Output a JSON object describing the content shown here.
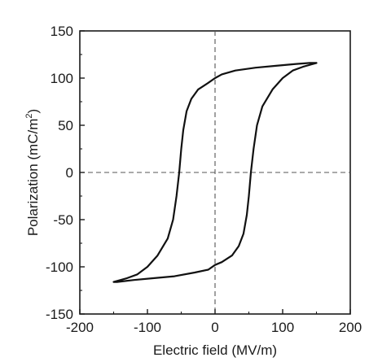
{
  "chart_data": {
    "type": "line",
    "xlabel": "Electric field (MV/m)",
    "ylabel_main": "Polarization (mC/m",
    "ylabel_sup": "2",
    "ylabel_end": ")",
    "xlim": [
      -200,
      200
    ],
    "ylim": [
      -150,
      150
    ],
    "x_ticks": [
      "-200",
      "-100",
      "0",
      "100",
      "200"
    ],
    "y_ticks": [
      "150",
      "100",
      "50",
      "0",
      "-50",
      "-100",
      "-150"
    ],
    "reference_lines": [
      "x=0 dashed",
      "y=0 dashed"
    ],
    "series": [
      {
        "color": "#111111",
        "points": [
          [
            150,
            116
          ],
          [
            140,
            116
          ],
          [
            120,
            115
          ],
          [
            90,
            113
          ],
          [
            60,
            111
          ],
          [
            30,
            108
          ],
          [
            10,
            104
          ],
          [
            0,
            100
          ],
          [
            -10,
            95
          ],
          [
            -25,
            88
          ],
          [
            -35,
            78
          ],
          [
            -42,
            65
          ],
          [
            -47,
            45
          ],
          [
            -50,
            25
          ],
          [
            -53,
            0
          ],
          [
            -57,
            -25
          ],
          [
            -62,
            -50
          ],
          [
            -70,
            -70
          ],
          [
            -85,
            -88
          ],
          [
            -100,
            -100
          ],
          [
            -115,
            -108
          ],
          [
            -130,
            -112
          ],
          [
            -150,
            -116
          ],
          [
            -145,
            -116
          ],
          [
            -120,
            -114
          ],
          [
            -90,
            -112
          ],
          [
            -60,
            -110
          ],
          [
            -30,
            -106
          ],
          [
            -10,
            -103
          ],
          [
            0,
            -98
          ],
          [
            10,
            -95
          ],
          [
            25,
            -88
          ],
          [
            35,
            -78
          ],
          [
            42,
            -65
          ],
          [
            47,
            -45
          ],
          [
            50,
            -25
          ],
          [
            53,
            0
          ],
          [
            57,
            25
          ],
          [
            62,
            50
          ],
          [
            70,
            70
          ],
          [
            85,
            88
          ],
          [
            100,
            100
          ],
          [
            115,
            108
          ],
          [
            130,
            112
          ],
          [
            150,
            116
          ]
        ]
      }
    ]
  },
  "colors": {
    "curve": "#111111",
    "axis": "#1a1a1a",
    "reference": "#555555"
  }
}
